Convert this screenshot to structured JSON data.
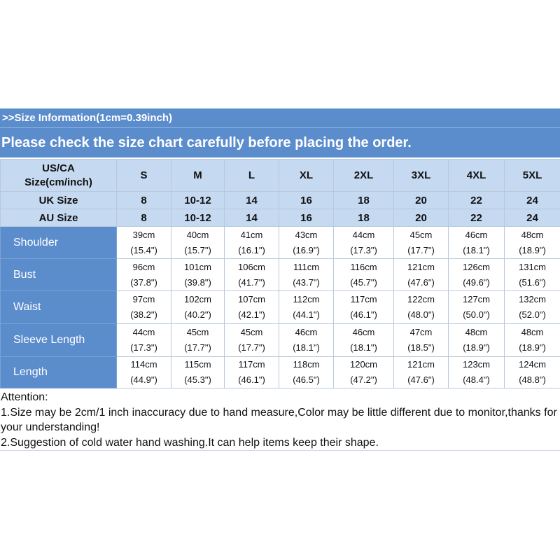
{
  "header": {
    "info": ">>Size Information(1cm=0.39inch)",
    "notice": "Please check the size chart carefully before placing the order."
  },
  "table": {
    "corner_line1": "US/CA",
    "corner_line2": "Size(cm/inch)",
    "sizes": [
      "S",
      "M",
      "L",
      "XL",
      "2XL",
      "3XL",
      "4XL",
      "5XL"
    ],
    "uk": {
      "label": "UK Size",
      "values": [
        "8",
        "10-12",
        "14",
        "16",
        "18",
        "20",
        "22",
        "24"
      ]
    },
    "au": {
      "label": "AU Size",
      "values": [
        "8",
        "10-12",
        "14",
        "16",
        "18",
        "20",
        "22",
        "24"
      ]
    },
    "rows": [
      {
        "label": "Shoulder",
        "cm": [
          "39cm",
          "40cm",
          "41cm",
          "43cm",
          "44cm",
          "45cm",
          "46cm",
          "48cm"
        ],
        "inch": [
          "(15.4\")",
          "(15.7\")",
          "(16.1\")",
          "(16.9\")",
          "(17.3\")",
          "(17.7\")",
          "(18.1\")",
          "(18.9\")"
        ]
      },
      {
        "label": "Bust",
        "cm": [
          "96cm",
          "101cm",
          "106cm",
          "111cm",
          "116cm",
          "121cm",
          "126cm",
          "131cm"
        ],
        "inch": [
          "(37.8\")",
          "(39.8\")",
          "(41.7\")",
          "(43.7\")",
          "(45.7\")",
          "(47.6\")",
          "(49.6\")",
          "(51.6\")"
        ]
      },
      {
        "label": "Waist",
        "cm": [
          "97cm",
          "102cm",
          "107cm",
          "112cm",
          "117cm",
          "122cm",
          "127cm",
          "132cm"
        ],
        "inch": [
          "(38.2\")",
          "(40.2\")",
          "(42.1\")",
          "(44.1\")",
          "(46.1\")",
          "(48.0\")",
          "(50.0\")",
          "(52.0\")"
        ]
      },
      {
        "label": "Sleeve Length",
        "cm": [
          "44cm",
          "45cm",
          "45cm",
          "46cm",
          "46cm",
          "47cm",
          "48cm",
          "48cm"
        ],
        "inch": [
          "(17.3\")",
          "(17.7\")",
          "(17.7\")",
          "(18.1\")",
          "(18.1\")",
          "(18.5\")",
          "(18.9\")",
          "(18.9\")"
        ]
      },
      {
        "label": "Length",
        "cm": [
          "114cm",
          "115cm",
          "117cm",
          "118cm",
          "120cm",
          "121cm",
          "123cm",
          "124cm"
        ],
        "inch": [
          "(44.9\")",
          "(45.3\")",
          "(46.1\")",
          "(46.5\")",
          "(47.2\")",
          "(47.6\")",
          "(48.4\")",
          "(48.8\")"
        ]
      }
    ]
  },
  "notes": {
    "heading": "Attention:",
    "line1": "1.Size may be 2cm/1 inch inaccuracy due to hand measure,Color may be little different due to monitor,thanks for your understanding!",
    "line2": "2.Suggestion of cold water hand washing.It can help items keep their shape."
  },
  "colors": {
    "banner": "#5b8ccc",
    "header_cells": "#c5d9f1",
    "border": "#b8c8dc"
  }
}
